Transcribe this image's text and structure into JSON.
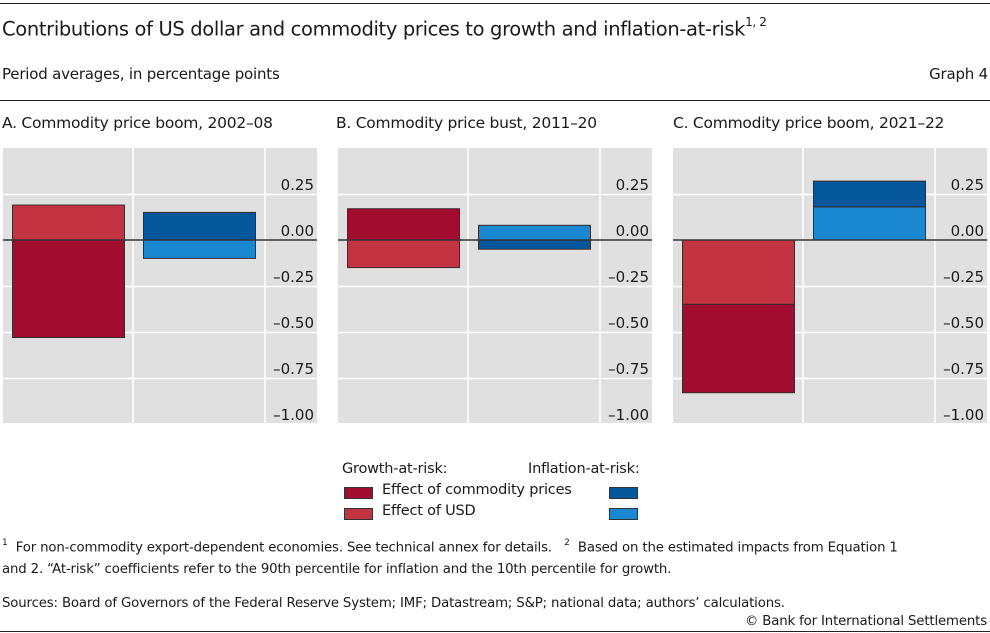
{
  "header": {
    "title": "Contributions of US dollar and commodity prices to growth and inflation-at-risk",
    "title_footnote_marks": "1, 2",
    "subtitle": "Period averages, in percentage points",
    "graph_number": "Graph 4"
  },
  "chart_data": [
    {
      "type": "bar",
      "stacked": true,
      "title": "A. Commodity price boom, 2002–08",
      "categories": [
        "Growth-at-risk",
        "Inflation-at-risk"
      ],
      "series": [
        {
          "name": "Growth-at-risk: Effect of commodity prices",
          "category": "Growth-at-risk",
          "value": -0.53,
          "color": "#a20c2e"
        },
        {
          "name": "Growth-at-risk: Effect of USD",
          "category": "Growth-at-risk",
          "value": 0.19,
          "color": "#c33341"
        },
        {
          "name": "Inflation-at-risk: Effect of commodity prices",
          "category": "Inflation-at-risk",
          "value": 0.15,
          "color": "#03579a"
        },
        {
          "name": "Inflation-at-risk: Effect of USD",
          "category": "Inflation-at-risk",
          "value": -0.1,
          "color": "#1988d0"
        }
      ],
      "ylim": [
        -1.0,
        0.5
      ],
      "yticks": [
        0.25,
        0.0,
        -0.25,
        -0.5,
        -0.75,
        -1.0
      ],
      "ytick_labels": [
        "0.25",
        "0.00",
        "–0.25",
        "–0.50",
        "–0.75",
        "–1.00"
      ],
      "yaxis_side": "right",
      "grid": true,
      "xlabel": "",
      "ylabel": ""
    },
    {
      "type": "bar",
      "stacked": true,
      "title": "B. Commodity price bust, 2011–20",
      "categories": [
        "Growth-at-risk",
        "Inflation-at-risk"
      ],
      "series": [
        {
          "name": "Growth-at-risk: Effect of commodity prices",
          "category": "Growth-at-risk",
          "value": 0.17,
          "color": "#a20c2e"
        },
        {
          "name": "Growth-at-risk: Effect of USD",
          "category": "Growth-at-risk",
          "value": -0.15,
          "color": "#c33341"
        },
        {
          "name": "Inflation-at-risk: Effect of commodity prices",
          "category": "Inflation-at-risk",
          "value": -0.05,
          "color": "#03579a"
        },
        {
          "name": "Inflation-at-risk: Effect of USD",
          "category": "Inflation-at-risk",
          "value": 0.08,
          "color": "#1988d0"
        }
      ],
      "ylim": [
        -1.0,
        0.5
      ],
      "yticks": [
        0.25,
        0.0,
        -0.25,
        -0.5,
        -0.75,
        -1.0
      ],
      "ytick_labels": [
        "0.25",
        "0.00",
        "–0.25",
        "–0.50",
        "–0.75",
        "–1.00"
      ],
      "yaxis_side": "right",
      "grid": true,
      "xlabel": "",
      "ylabel": ""
    },
    {
      "type": "bar",
      "stacked": true,
      "title": "C. Commodity price boom, 2021–22",
      "categories": [
        "Growth-at-risk",
        "Inflation-at-risk"
      ],
      "series": [
        {
          "name": "Growth-at-risk: Effect of commodity prices",
          "category": "Growth-at-risk",
          "value": -0.48,
          "color": "#a20c2e"
        },
        {
          "name": "Growth-at-risk: Effect of USD",
          "category": "Growth-at-risk",
          "value": -0.35,
          "color": "#c33341"
        },
        {
          "name": "Inflation-at-risk: Effect of commodity prices",
          "category": "Inflation-at-risk",
          "value": 0.14,
          "color": "#03579a"
        },
        {
          "name": "Inflation-at-risk: Effect of USD",
          "category": "Inflation-at-risk",
          "value": 0.18,
          "color": "#1988d0"
        }
      ],
      "ylim": [
        -1.0,
        0.5
      ],
      "yticks": [
        0.25,
        0.0,
        -0.25,
        -0.5,
        -0.75,
        -1.0
      ],
      "ytick_labels": [
        "0.25",
        "0.00",
        "–0.25",
        "–0.50",
        "–0.75",
        "–1.00"
      ],
      "yaxis_side": "right",
      "grid": true,
      "xlabel": "",
      "ylabel": ""
    }
  ],
  "legend": {
    "growth_header": "Growth-at-risk:",
    "inflation_header": "Inflation-at-risk:",
    "commodity_label": "Effect of commodity prices",
    "usd_label": "Effect of USD",
    "colors": {
      "growth_commodity": "#a20c2e",
      "growth_usd": "#c33341",
      "inflation_commodity": "#03579a",
      "inflation_usd": "#1988d0"
    },
    "placement": "bottom-center"
  },
  "footnotes": {
    "note1_mark": "1",
    "note1_text": "For non-commodity export-dependent economies. See technical annex for details.",
    "note2_mark": "2",
    "note2_text_line1": "Based on the estimated impacts from Equation 1",
    "line2": "and 2. “At-risk” coefficients refer to the 90th percentile for inflation and the 10th percentile for growth.",
    "sources": "Sources: Board of Governors of the Federal Reserve System; IMF; Datastream; S&P; national data; authors’ calculations.",
    "copyright": "© Bank for International Settlements"
  }
}
